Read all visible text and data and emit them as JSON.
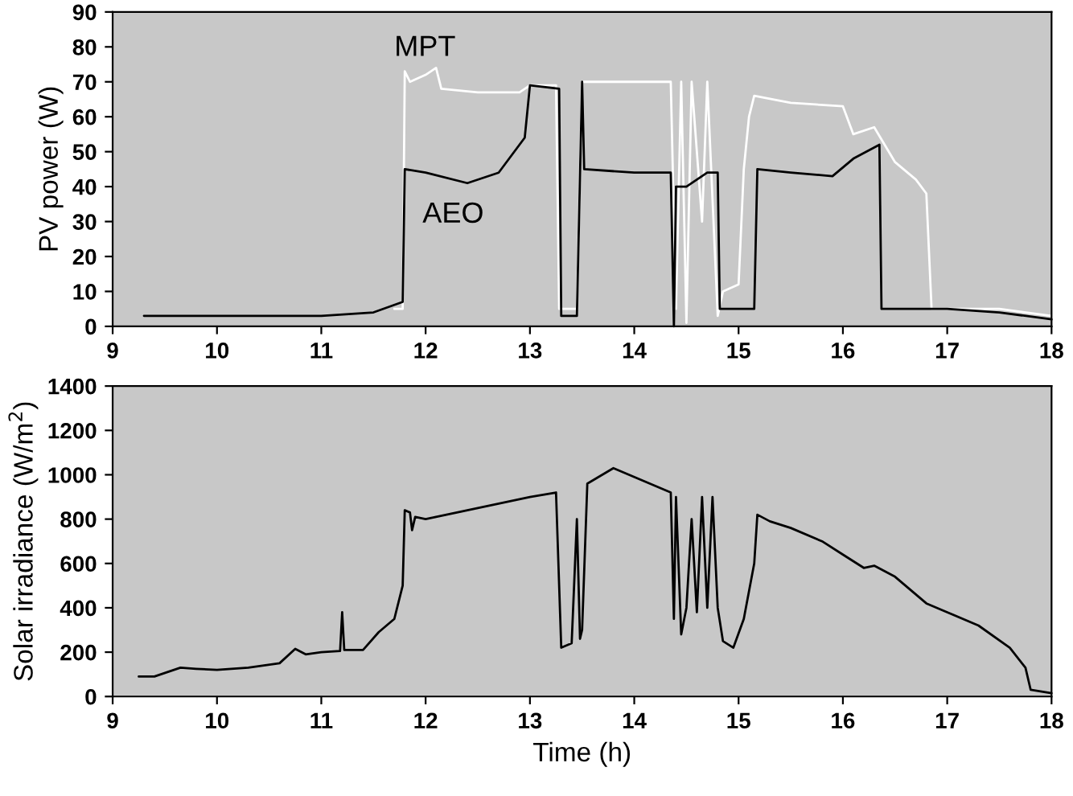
{
  "chart_data": [
    {
      "type": "line",
      "ylabel": "PV power (W)",
      "xlim": [
        9,
        18
      ],
      "xticks": [
        9,
        10,
        11,
        12,
        13,
        14,
        15,
        16,
        17,
        18
      ],
      "ylim": [
        0,
        90
      ],
      "yticks": [
        0,
        10,
        20,
        30,
        40,
        50,
        60,
        70,
        80,
        90
      ],
      "grid": false,
      "legend": false,
      "marker": "none",
      "line_style": "solid",
      "series": [
        {
          "name": "MPT",
          "color": "#ffffff",
          "x": [
            11.7,
            11.78,
            11.8,
            11.85,
            12.0,
            12.1,
            12.15,
            12.5,
            12.9,
            13.0,
            13.25,
            13.28,
            13.45,
            13.5,
            14.0,
            14.35,
            14.4,
            14.45,
            14.5,
            14.55,
            14.65,
            14.7,
            14.8,
            14.85,
            15.0,
            15.05,
            15.1,
            15.15,
            15.5,
            16.0,
            16.1,
            16.3,
            16.5,
            16.7,
            16.8,
            16.85,
            17.5,
            18.0
          ],
          "values": [
            5,
            5,
            73,
            70,
            72,
            74,
            68,
            67,
            67,
            69,
            69,
            5,
            5,
            70,
            70,
            70,
            5,
            70,
            1,
            70,
            30,
            70,
            3,
            10,
            12,
            45,
            60,
            66,
            64,
            63,
            55,
            57,
            47,
            42,
            38,
            5,
            5,
            3
          ]
        },
        {
          "name": "AEO",
          "color": "#000000",
          "x": [
            9.3,
            10.0,
            11.0,
            11.5,
            11.78,
            11.8,
            12.0,
            12.4,
            12.7,
            12.95,
            13.0,
            13.28,
            13.3,
            13.45,
            13.5,
            13.52,
            14.0,
            14.35,
            14.38,
            14.4,
            14.5,
            14.7,
            14.8,
            14.82,
            15.15,
            15.18,
            15.5,
            15.9,
            16.1,
            16.35,
            16.37,
            16.5,
            17.0,
            17.5,
            18.0
          ],
          "values": [
            3,
            3,
            3,
            4,
            7,
            45,
            44,
            41,
            44,
            54,
            69,
            68,
            3,
            3,
            70,
            45,
            44,
            44,
            0,
            40,
            40,
            44,
            44,
            5,
            5,
            45,
            44,
            43,
            48,
            52,
            5,
            5,
            5,
            4,
            2
          ]
        }
      ]
    },
    {
      "type": "line",
      "xlabel": "Time (h)",
      "ylabel": "Solar irradiance (W/m$^{2}$)",
      "xlim": [
        9,
        18
      ],
      "xticks": [
        9,
        10,
        11,
        12,
        13,
        14,
        15,
        16,
        17,
        18
      ],
      "ylim": [
        0,
        1400
      ],
      "yticks": [
        0,
        200,
        400,
        600,
        800,
        1000,
        1200,
        1400
      ],
      "grid": false,
      "legend": false,
      "marker": "none",
      "line_style": "solid",
      "series": [
        {
          "color": "#000000",
          "x": [
            9.25,
            9.4,
            9.65,
            9.8,
            10.0,
            10.3,
            10.6,
            10.75,
            10.85,
            11.0,
            11.18,
            11.2,
            11.22,
            11.4,
            11.55,
            11.7,
            11.78,
            11.8,
            11.85,
            11.87,
            11.9,
            12.0,
            12.5,
            13.0,
            13.25,
            13.3,
            13.4,
            13.45,
            13.48,
            13.5,
            13.55,
            13.8,
            14.0,
            14.2,
            14.35,
            14.38,
            14.4,
            14.45,
            14.5,
            14.55,
            14.6,
            14.65,
            14.7,
            14.75,
            14.8,
            14.85,
            14.95,
            15.05,
            15.15,
            15.18,
            15.3,
            15.5,
            15.8,
            16.0,
            16.2,
            16.3,
            16.5,
            16.8,
            17.0,
            17.3,
            17.6,
            17.75,
            17.8,
            18.0
          ],
          "values": [
            90,
            90,
            130,
            125,
            120,
            130,
            150,
            215,
            190,
            200,
            205,
            380,
            210,
            210,
            290,
            350,
            500,
            840,
            830,
            750,
            810,
            800,
            850,
            900,
            920,
            220,
            240,
            800,
            260,
            300,
            960,
            1030,
            990,
            950,
            920,
            350,
            900,
            280,
            400,
            800,
            380,
            900,
            400,
            900,
            400,
            250,
            220,
            350,
            600,
            820,
            790,
            760,
            700,
            640,
            580,
            590,
            540,
            420,
            380,
            320,
            220,
            130,
            30,
            15
          ]
        }
      ]
    }
  ]
}
